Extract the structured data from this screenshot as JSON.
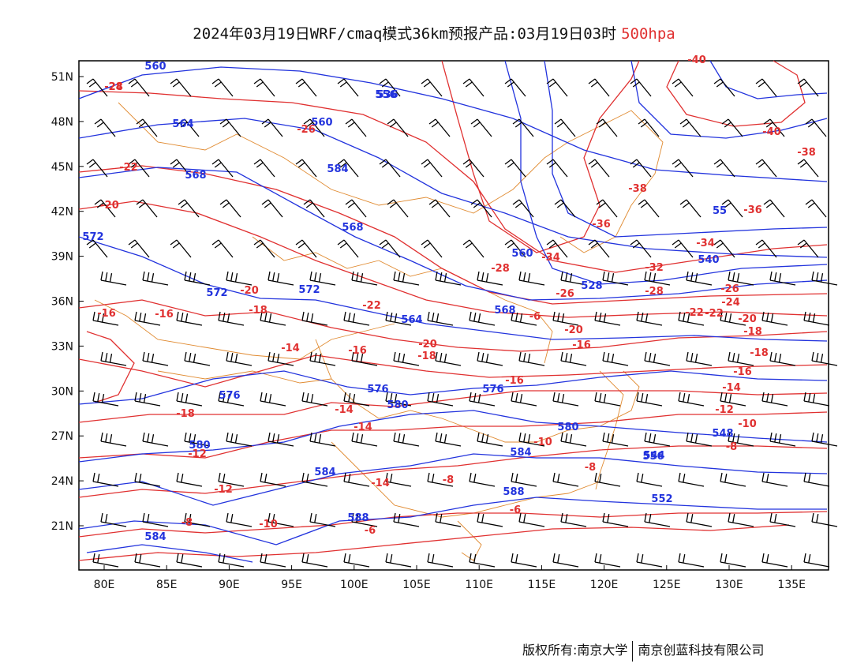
{
  "title": {
    "main": "2024年03月19日WRF/cmaq模式36km预报产品:03月19日03时",
    "level": "500hpa"
  },
  "axes": {
    "x_ticks": [
      "80E",
      "85E",
      "90E",
      "95E",
      "100E",
      "105E",
      "110E",
      "115E",
      "120E",
      "125E",
      "130E",
      "135E"
    ],
    "y_ticks": [
      "51N",
      "48N",
      "45N",
      "42N",
      "39N",
      "36N",
      "33N",
      "30N",
      "27N",
      "24N",
      "21N"
    ]
  },
  "colors": {
    "height_contours": "#2233dd",
    "temperature_contours": "#e03030",
    "boundaries": "#e08a30",
    "wind_barbs": "#000000"
  },
  "height_labels": [
    "560",
    "556",
    "564",
    "560",
    "568",
    "584",
    "568",
    "572",
    "572",
    "572",
    "564",
    "568",
    "576",
    "576",
    "580",
    "576",
    "580",
    "584",
    "580",
    "584",
    "588",
    "588",
    "584",
    "556",
    "548",
    "552",
    "544",
    "536",
    "528",
    "560",
    "540",
    "55"
  ],
  "temperature_labels": [
    "-24",
    "-22",
    "-26",
    "-20",
    "-16",
    "-16",
    "-20",
    "-18",
    "-22",
    "-14",
    "-16",
    "-20",
    "-18",
    "-18",
    "-16",
    "-14",
    "-14",
    "-12",
    "-16",
    "-12",
    "-14",
    "-10",
    "-8",
    "-10",
    "-6",
    "-8",
    "-6",
    "-8",
    "-28",
    "-34",
    "-36",
    "-38",
    "-40",
    "-36",
    "-40",
    "-38",
    "-34",
    "-32",
    "-28",
    "-26",
    "-26",
    "-24",
    "-22",
    "-22",
    "-20",
    "-20",
    "-18",
    "-18",
    "-16",
    "-14",
    "-12",
    "-10",
    "-8",
    "-6",
    "-28"
  ],
  "footer": {
    "left": "版权所有:南京大学",
    "right": "南京创蓝科技有限公司"
  }
}
